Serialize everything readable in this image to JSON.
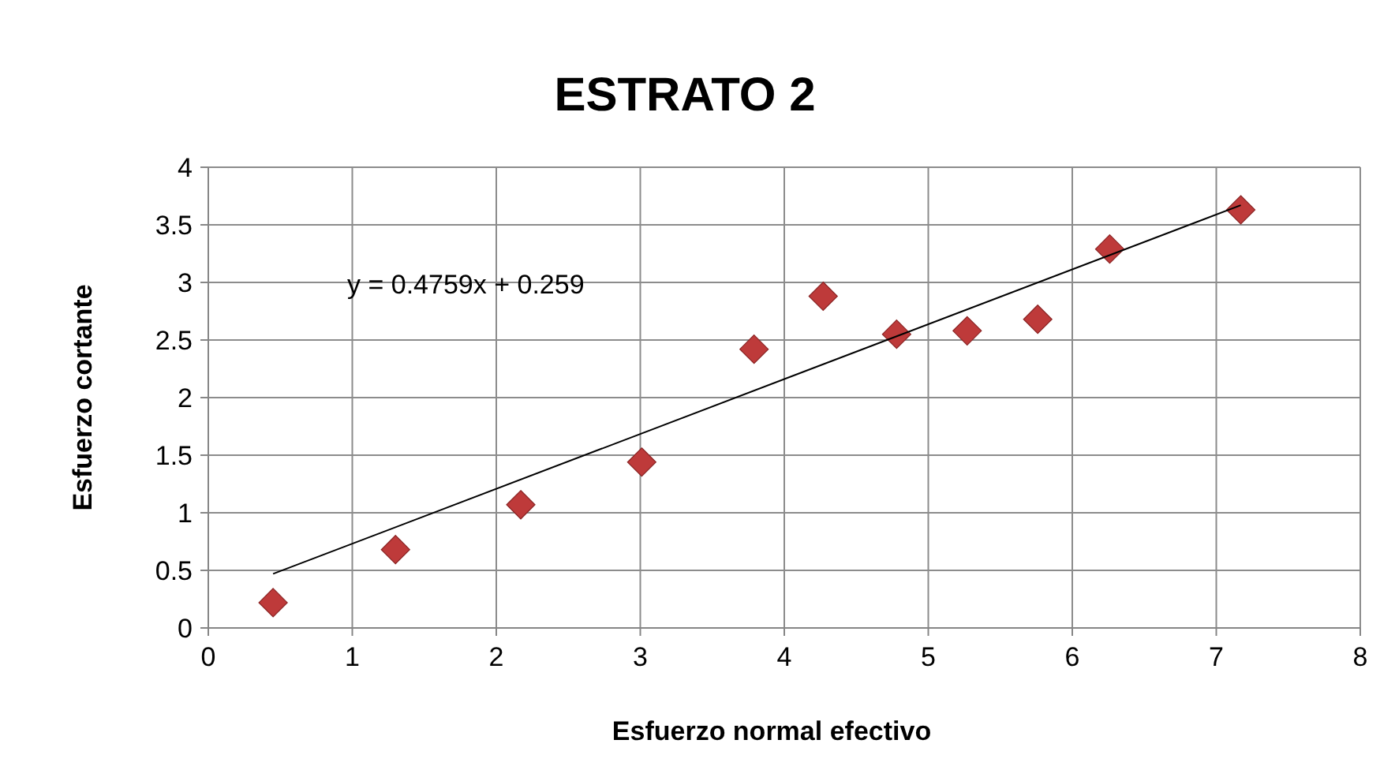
{
  "chart_data": {
    "type": "scatter",
    "title": "ESTRATO 2",
    "xlabel": "Esfuerzo normal efectivo",
    "ylabel": "Esfuerzo cortante",
    "xlim": [
      0,
      8
    ],
    "xticks": [
      0,
      1,
      2,
      3,
      4,
      5,
      6,
      7,
      8
    ],
    "ylim": [
      0,
      4
    ],
    "yticks": [
      0,
      0.5,
      1,
      1.5,
      2,
      2.5,
      3,
      3.5,
      4
    ],
    "grid": true,
    "marker": "diamond",
    "series": [
      {
        "color": "#be3a3a",
        "x": [
          0.45,
          1.3,
          2.17,
          3.01,
          3.79,
          4.27,
          4.78,
          5.27,
          5.76,
          6.26,
          7.17
        ],
        "values": [
          0.22,
          0.68,
          1.07,
          1.44,
          2.42,
          2.88,
          2.55,
          2.58,
          2.68,
          3.29,
          3.63
        ]
      },
      {
        "type": "line",
        "color": "#000000",
        "marker": "none",
        "x": [
          0.45,
          7.17
        ],
        "values": [
          0.47,
          3.67
        ]
      }
    ],
    "annotations": [
      "y = 0.4759x + 0.259"
    ]
  }
}
